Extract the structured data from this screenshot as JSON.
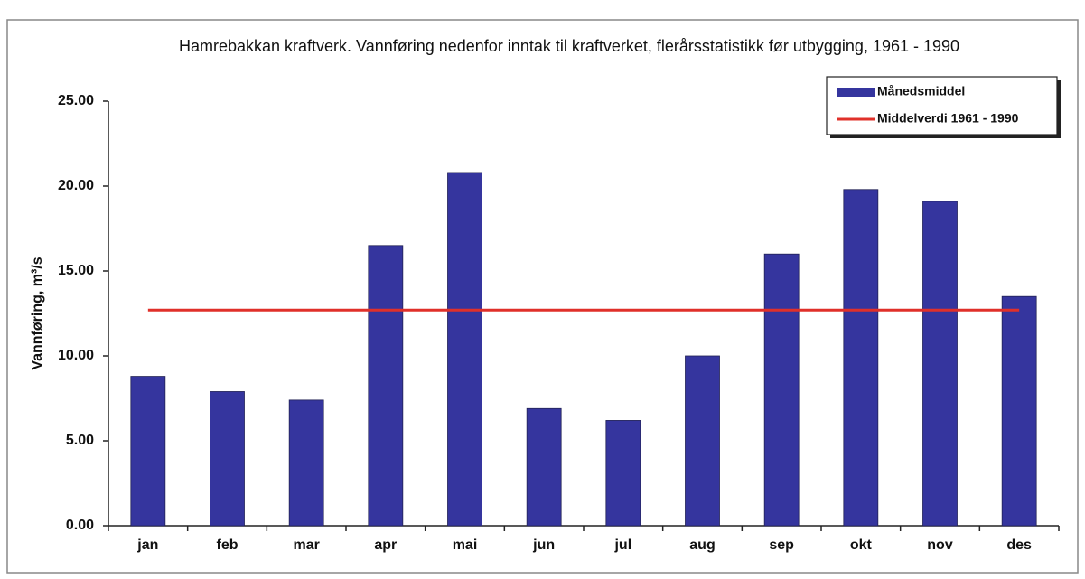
{
  "chart_data": {
    "type": "bar",
    "title": "Hamrebakkan kraftverk. Vannføring nedenfor inntak til kraftverket, flerårsstatistikk før utbygging, 1961 - 1990",
    "y_label": "Vannføring, m³/s",
    "categories": [
      "jan",
      "feb",
      "mar",
      "apr",
      "mai",
      "jun",
      "jul",
      "aug",
      "sep",
      "okt",
      "nov",
      "des"
    ],
    "series": [
      {
        "name": "Månedsmiddel",
        "type": "bar",
        "color": "#35359e",
        "values": [
          8.8,
          7.9,
          7.4,
          16.5,
          20.8,
          6.9,
          6.2,
          10.0,
          16.0,
          19.8,
          19.1,
          13.5
        ]
      },
      {
        "name": "Middelverdi 1961 - 1990",
        "type": "line",
        "color": "#e0302a",
        "values": [
          12.7,
          12.7,
          12.7,
          12.7,
          12.7,
          12.7,
          12.7,
          12.7,
          12.7,
          12.7,
          12.7,
          12.7
        ]
      }
    ],
    "ylim": [
      0,
      25
    ],
    "yticks": [
      {
        "value": 0,
        "label": "0.00"
      },
      {
        "value": 5,
        "label": "5.00"
      },
      {
        "value": 10,
        "label": "10.00"
      },
      {
        "value": 15,
        "label": "15.00"
      },
      {
        "value": 20,
        "label": "20.00"
      },
      {
        "value": 25,
        "label": "25.00"
      }
    ],
    "grid": false,
    "legend": "top-right"
  }
}
